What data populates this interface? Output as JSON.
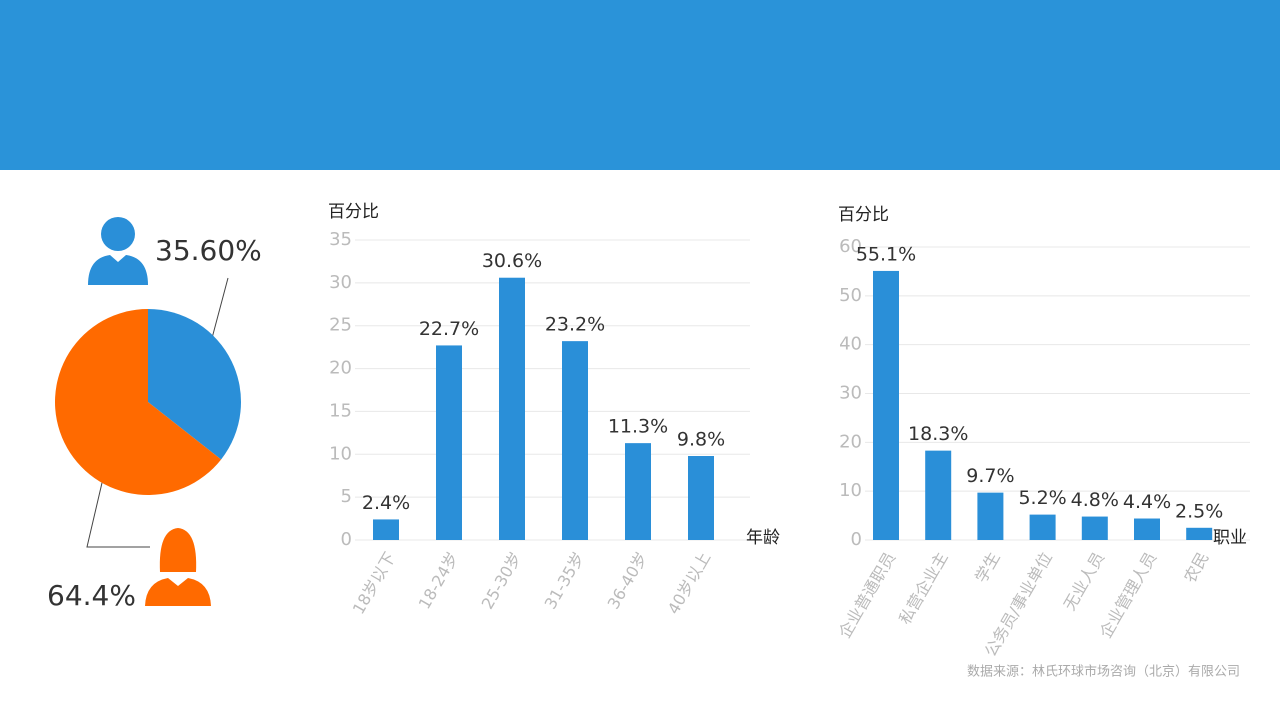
{
  "chart_data": [
    {
      "type": "pie",
      "values": [
        35.6,
        64.4
      ],
      "value_labels": [
        "35.60%",
        "64.4%"
      ],
      "colors": [
        "#2a8fd8",
        "#ff6a00"
      ]
    },
    {
      "type": "bar",
      "y_label": "百分比",
      "x_label": "年龄",
      "categories": [
        "18岁以下",
        "18-24岁",
        "25-30岁",
        "31-35岁",
        "36-40岁",
        "40岁以上"
      ],
      "values": [
        2.4,
        22.7,
        30.6,
        23.2,
        11.3,
        9.8
      ],
      "value_labels": [
        "2.4%",
        "22.7%",
        "30.6%",
        "23.2%",
        "11.3%",
        "9.8%"
      ],
      "color": "#2a8fd8",
      "ylim": [
        0,
        35
      ],
      "yticks": [
        0,
        5,
        10,
        15,
        20,
        25,
        30,
        35
      ],
      "grid": true
    },
    {
      "type": "bar",
      "y_label": "百分比",
      "x_label": "职业",
      "categories": [
        "企业普通职员",
        "私营企业主",
        "学生",
        "公务员/事业单位",
        "无业人员",
        "企业管理人员",
        "农民"
      ],
      "values": [
        55.1,
        18.3,
        9.7,
        5.2,
        4.8,
        4.4,
        2.5
      ],
      "value_labels": [
        "55.1%",
        "18.3%",
        "9.7%",
        "5.2%",
        "4.8%",
        "4.4%",
        "2.5%"
      ],
      "color": "#2a8fd8",
      "ylim": [
        0,
        60
      ],
      "yticks": [
        0,
        10,
        20,
        30,
        40,
        50,
        60
      ],
      "grid": true
    }
  ],
  "source": "数据来源：林氏环球市场咨询（北京）有限公司"
}
